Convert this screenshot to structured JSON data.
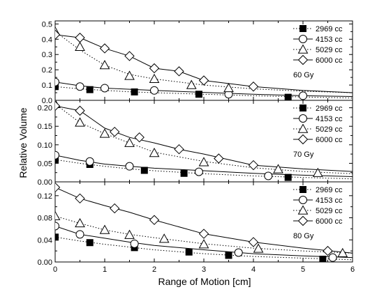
{
  "chart_data": [
    {
      "type": "line",
      "panel_label": "60 Gy",
      "xlim": [
        0,
        6
      ],
      "ylim": [
        0,
        0.52
      ],
      "y_ticks": [
        0.0,
        0.1,
        0.2,
        0.3,
        0.4,
        0.5
      ],
      "y_tick_labels": [
        "0.0",
        "0.1",
        "0.2",
        "0.3",
        "0.4",
        "0.5"
      ],
      "series": [
        {
          "name": "2969 cc",
          "marker": "filled-square",
          "line": "dotted",
          "markers": {
            "x": [
              0,
              0.7,
              1.6,
              2.9,
              4.7
            ],
            "y": [
              0.09,
              0.07,
              0.055,
              0.04,
              0.02
            ]
          },
          "curve": {
            "x": [
              0,
              0.5,
              1,
              1.5,
              2,
              3,
              4,
              5,
              6
            ],
            "y": [
              0.09,
              0.075,
              0.065,
              0.056,
              0.05,
              0.04,
              0.03,
              0.022,
              0.015
            ]
          }
        },
        {
          "name": "4153 cc",
          "marker": "open-circle",
          "line": "solid",
          "markers": {
            "x": [
              0,
              0.5,
              1,
              2,
              3.5,
              5
            ],
            "y": [
              0.12,
              0.09,
              0.08,
              0.065,
              0.04,
              0.03
            ]
          },
          "curve": {
            "x": [
              0,
              0.5,
              1,
              2,
              3,
              4,
              5,
              6
            ],
            "y": [
              0.12,
              0.095,
              0.08,
              0.065,
              0.052,
              0.04,
              0.03,
              0.025
            ]
          }
        },
        {
          "name": "5029 cc",
          "marker": "open-triangle",
          "line": "dotted",
          "markers": {
            "x": [
              0,
              0.5,
              1,
              1.5,
              2,
              2.75,
              3.5
            ],
            "y": [
              0.45,
              0.35,
              0.23,
              0.16,
              0.14,
              0.1,
              0.08
            ]
          },
          "curve": {
            "x": [
              0,
              0.5,
              1,
              1.5,
              2,
              3,
              4,
              5,
              6
            ],
            "y": [
              0.45,
              0.33,
              0.23,
              0.17,
              0.14,
              0.1,
              0.075,
              0.06,
              0.05
            ]
          }
        },
        {
          "name": "6000 cc",
          "marker": "open-diamond",
          "line": "solid",
          "markers": {
            "x": [
              0,
              0.5,
              1,
              1.5,
              2,
              2.5,
              3,
              4
            ],
            "y": [
              0.43,
              0.41,
              0.34,
              0.29,
              0.21,
              0.19,
              0.13,
              0.09
            ]
          },
          "curve": {
            "x": [
              0,
              0.5,
              1,
              1.5,
              2,
              2.5,
              3,
              4,
              5,
              6
            ],
            "y": [
              0.43,
              0.41,
              0.34,
              0.29,
              0.21,
              0.19,
              0.13,
              0.09,
              0.065,
              0.05
            ]
          }
        }
      ]
    },
    {
      "type": "line",
      "panel_label": "70 Gy",
      "xlim": [
        0,
        6
      ],
      "ylim": [
        0,
        0.22
      ],
      "y_ticks": [
        0.0,
        0.05,
        0.1,
        0.15,
        0.2
      ],
      "y_tick_labels": [
        "0.00",
        "0.05",
        "0.10",
        "0.15",
        "0.20"
      ],
      "series": [
        {
          "name": "2969 cc",
          "marker": "filled-square",
          "line": "dotted",
          "markers": {
            "x": [
              0,
              0.7,
              1.8,
              2.6,
              4.7
            ],
            "y": [
              0.06,
              0.047,
              0.031,
              0.023,
              0.012
            ]
          },
          "curve": {
            "x": [
              0,
              0.5,
              1,
              1.5,
              2,
              3,
              4,
              5,
              6
            ],
            "y": [
              0.06,
              0.05,
              0.042,
              0.035,
              0.03,
              0.022,
              0.016,
              0.012,
              0.008
            ]
          }
        },
        {
          "name": "4153 cc",
          "marker": "open-circle",
          "line": "solid",
          "markers": {
            "x": [
              0,
              0.7,
              1.5,
              2.9,
              4.3
            ],
            "y": [
              0.072,
              0.055,
              0.042,
              0.027,
              0.016
            ]
          },
          "curve": {
            "x": [
              0,
              0.5,
              1,
              1.5,
              2,
              3,
              4,
              5,
              6
            ],
            "y": [
              0.072,
              0.058,
              0.048,
              0.042,
              0.037,
              0.03,
              0.023,
              0.018,
              0.014
            ]
          }
        },
        {
          "name": "5029 cc",
          "marker": "open-triangle",
          "line": "dotted",
          "markers": {
            "x": [
              0,
              0.5,
              1,
              1.5,
              2,
              3,
              4.5,
              5.3
            ],
            "y": [
              0.21,
              0.16,
              0.13,
              0.105,
              0.078,
              0.053,
              0.034,
              0.024
            ]
          },
          "curve": {
            "x": [
              0,
              0.5,
              1,
              1.5,
              2,
              3,
              4,
              5,
              6
            ],
            "y": [
              0.21,
              0.16,
              0.13,
              0.105,
              0.08,
              0.055,
              0.038,
              0.028,
              0.022
            ]
          }
        },
        {
          "name": "6000 cc",
          "marker": "open-diamond",
          "line": "solid",
          "markers": {
            "x": [
              0,
              0.5,
              1.2,
              1.7,
              2.5,
              3.3,
              4
            ],
            "y": [
              0.205,
              0.192,
              0.135,
              0.12,
              0.088,
              0.063,
              0.045
            ]
          },
          "curve": {
            "x": [
              0,
              0.5,
              1,
              1.5,
              2,
              2.5,
              3,
              4,
              5,
              6
            ],
            "y": [
              0.205,
              0.192,
              0.145,
              0.12,
              0.105,
              0.088,
              0.075,
              0.045,
              0.035,
              0.028
            ]
          }
        }
      ]
    },
    {
      "type": "line",
      "panel_label": "80 Gy",
      "xlim": [
        0,
        6
      ],
      "ylim": [
        0,
        0.145
      ],
      "y_ticks": [
        0.0,
        0.04,
        0.08,
        0.12
      ],
      "y_tick_labels": [
        "0.00",
        "0.04",
        "0.08",
        "0.12"
      ],
      "x_ticks": [
        0,
        1,
        2,
        3,
        4,
        5,
        6
      ],
      "x_tick_labels": [
        "0",
        "1",
        "2",
        "3",
        "4",
        "5",
        "6"
      ],
      "xlabel": "Range of Motion [cm]",
      "series": [
        {
          "name": "2969 cc",
          "marker": "filled-square",
          "line": "dotted",
          "markers": {
            "x": [
              0,
              0.7,
              1.6,
              2.7,
              3.5,
              5.4
            ],
            "y": [
              0.045,
              0.035,
              0.026,
              0.018,
              0.012,
              0.005
            ]
          },
          "curve": {
            "x": [
              0,
              0.5,
              1,
              1.5,
              2,
              3,
              4,
              5,
              6
            ],
            "y": [
              0.045,
              0.038,
              0.032,
              0.027,
              0.022,
              0.015,
              0.01,
              0.007,
              0.004
            ]
          }
        },
        {
          "name": "4153 cc",
          "marker": "open-circle",
          "line": "solid",
          "markers": {
            "x": [
              0,
              0.5,
              1.6,
              3.7,
              5.6
            ],
            "y": [
              0.065,
              0.05,
              0.033,
              0.017,
              0.008
            ]
          },
          "curve": {
            "x": [
              0,
              0.5,
              1,
              1.5,
              2,
              3,
              4,
              5,
              6
            ],
            "y": [
              0.065,
              0.05,
              0.043,
              0.036,
              0.03,
              0.022,
              0.015,
              0.011,
              0.008
            ]
          }
        },
        {
          "name": "5029 cc",
          "marker": "open-triangle",
          "line": "dotted",
          "markers": {
            "x": [
              0,
              0.5,
              1,
              1.5,
              2.2,
              3,
              4.1,
              5.8
            ],
            "y": [
              0.083,
              0.07,
              0.058,
              0.049,
              0.042,
              0.032,
              0.024,
              0.016
            ]
          },
          "curve": {
            "x": [
              0,
              0.5,
              1,
              1.5,
              2,
              3,
              4,
              5,
              6
            ],
            "y": [
              0.083,
              0.07,
              0.058,
              0.05,
              0.044,
              0.033,
              0.025,
              0.02,
              0.016
            ]
          }
        },
        {
          "name": "6000 cc",
          "marker": "open-diamond",
          "line": "solid",
          "markers": {
            "x": [
              0,
              0.5,
              1.2,
              2,
              3,
              4,
              5.5
            ],
            "y": [
              0.135,
              0.115,
              0.097,
              0.076,
              0.051,
              0.036,
              0.02
            ]
          },
          "curve": {
            "x": [
              0,
              0.5,
              1,
              1.5,
              2,
              3,
              4,
              5,
              6
            ],
            "y": [
              0.135,
              0.115,
              0.102,
              0.09,
              0.076,
              0.051,
              0.036,
              0.025,
              0.016
            ]
          }
        }
      ]
    }
  ],
  "ylabel": "Relative Volume",
  "colors": {
    "ink": "#000000",
    "marker_fill_open": "#ffffff"
  }
}
